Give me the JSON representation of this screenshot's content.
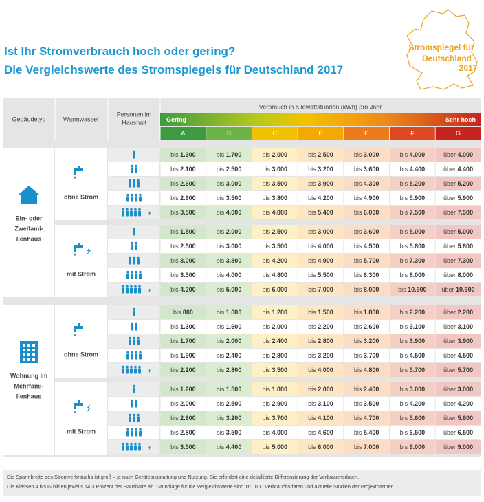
{
  "header": {
    "title": [
      "Ist Ihr Stromverbrauch hoch oder gering?",
      "Die Vergleichswerte des Stromspiegels für Deutschland 2017"
    ]
  },
  "logo": {
    "lines": [
      "Stromspiegel für",
      "Deutschland",
      "2017"
    ]
  },
  "table": {
    "columns": [
      "Gebäudetyp",
      "Warmwasser",
      [
        "Personen im",
        "Haushalt"
      ]
    ],
    "consumption_header": "Verbrauch in Kilowattstunden (kWh) pro Jahr",
    "scale_low": "Gering",
    "scale_high": "Sehr hoch",
    "classes": [
      {
        "label": "A",
        "color": "#3f9b42",
        "tint": "#d3e7cd"
      },
      {
        "label": "B",
        "color": "#6cb247",
        "tint": "#dcecd0"
      },
      {
        "label": "C",
        "color": "#f2c200",
        "tint": "#fdf0c4"
      },
      {
        "label": "D",
        "color": "#f4a900",
        "tint": "#fde6c3"
      },
      {
        "label": "E",
        "color": "#ec7c1b",
        "tint": "#fbdcc4"
      },
      {
        "label": "F",
        "color": "#de4a20",
        "tint": "#f6cfc4"
      },
      {
        "label": "G",
        "color": "#c4261e",
        "tint": "#f2c6c2"
      }
    ],
    "prefixes": [
      "bis",
      "über"
    ],
    "more_marker": "+",
    "groups": [
      {
        "building": [
          "Ein- oder",
          "Zweifami-",
          "lienhaus"
        ],
        "icon": "house",
        "subgroups": [
          {
            "label": "ohne Strom",
            "rows": [
              [
                "1.300",
                "1.700",
                "2.000",
                "2.500",
                "3.000",
                "4.000",
                "4.000"
              ],
              [
                "2.100",
                "2.500",
                "3.000",
                "3.200",
                "3.600",
                "4.400",
                "4.400"
              ],
              [
                "2.600",
                "3.000",
                "3.500",
                "3.900",
                "4.300",
                "5.200",
                "5.200"
              ],
              [
                "2.900",
                "3.500",
                "3.800",
                "4.200",
                "4.900",
                "5.900",
                "5.900"
              ],
              [
                "3.500",
                "4.000",
                "4.800",
                "5.400",
                "6.000",
                "7.500",
                "7.500"
              ]
            ]
          },
          {
            "label": "mit Strom",
            "rows": [
              [
                "1.500",
                "2.000",
                "2.500",
                "3.000",
                "3.600",
                "5.000",
                "5.000"
              ],
              [
                "2.500",
                "3.000",
                "3.500",
                "4.000",
                "4.500",
                "5.800",
                "5.800"
              ],
              [
                "3.000",
                "3.800",
                "4.200",
                "4.900",
                "5.700",
                "7.300",
                "7.300"
              ],
              [
                "3.500",
                "4.000",
                "4.800",
                "5.500",
                "6.300",
                "8.000",
                "8.000"
              ],
              [
                "4.200",
                "5.000",
                "6.000",
                "7.000",
                "8.000",
                "10.900",
                "10.900"
              ]
            ]
          }
        ]
      },
      {
        "building": [
          "Wohnung im",
          "Mehrfami-",
          "lienhaus"
        ],
        "icon": "flat",
        "subgroups": [
          {
            "label": "ohne Strom",
            "rows": [
              [
                "800",
                "1.000",
                "1.200",
                "1.500",
                "1.800",
                "2.200",
                "2.200"
              ],
              [
                "1.300",
                "1.600",
                "2.000",
                "2.200",
                "2.600",
                "3.100",
                "3.100"
              ],
              [
                "1.700",
                "2.000",
                "2.400",
                "2.800",
                "3.200",
                "3.900",
                "3.900"
              ],
              [
                "1.900",
                "2.400",
                "2.800",
                "3.200",
                "3.700",
                "4.500",
                "4.500"
              ],
              [
                "2.200",
                "2.800",
                "3.500",
                "4.000",
                "4.800",
                "5.700",
                "5.700"
              ]
            ]
          },
          {
            "label": "mit Strom",
            "rows": [
              [
                "1.200",
                "1.500",
                "1.800",
                "2.000",
                "2.400",
                "3.000",
                "3.000"
              ],
              [
                "2.000",
                "2.500",
                "2.900",
                "3.100",
                "3.500",
                "4.200",
                "4.200"
              ],
              [
                "2.600",
                "3.200",
                "3.700",
                "4.100",
                "4.700",
                "5.600",
                "5.600"
              ],
              [
                "2.800",
                "3.500",
                "4.000",
                "4.600",
                "5.400",
                "6.500",
                "6.500"
              ],
              [
                "3.500",
                "4.400",
                "5.000",
                "6.000",
                "7.000",
                "9.000",
                "9.000"
              ]
            ]
          }
        ]
      }
    ]
  },
  "footer": [
    "Die Spannbreite des Stromverbrauchs ist groß – je nach Geräteausstattung und Nutzung. Sie erfordert eine detaillierte Differenzierung der Verbrauchsdaten.",
    "Die Klassen A bis G bilden jeweils 14,3 Prozent der Haushalte ab. Grundlage für die Vergleichswerte sind 161.000 Verbrauchsdaten und aktuelle Studien der Projektpartner."
  ]
}
